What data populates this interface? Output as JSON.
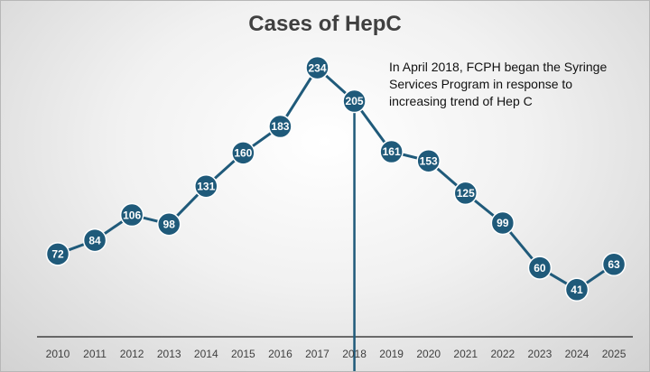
{
  "chart_data": {
    "type": "line",
    "title": "Cases of HepC",
    "xlabel": "",
    "ylabel": "",
    "categories": [
      "2010",
      "2011",
      "2012",
      "2013",
      "2014",
      "2015",
      "2016",
      "2017",
      "2018",
      "2019",
      "2020",
      "2021",
      "2022",
      "2023",
      "2024",
      "2025"
    ],
    "series": [
      {
        "values": [
          72,
          84,
          106,
          98,
          131,
          160,
          183,
          234,
          205,
          161,
          153,
          125,
          99,
          60,
          41,
          63
        ]
      }
    ],
    "data_labels": true,
    "ylim": [
      0,
      260
    ],
    "grid": false,
    "vertical_marker_category": "2018",
    "annotation": "In April 2018, FCPH began the Syringe Services Program in response to increasing trend of Hep C",
    "colors": {
      "series": "#1f5a7a",
      "label_text": "#ffffff",
      "marker_line": "#1f5a7a",
      "axis": "#404040"
    }
  }
}
